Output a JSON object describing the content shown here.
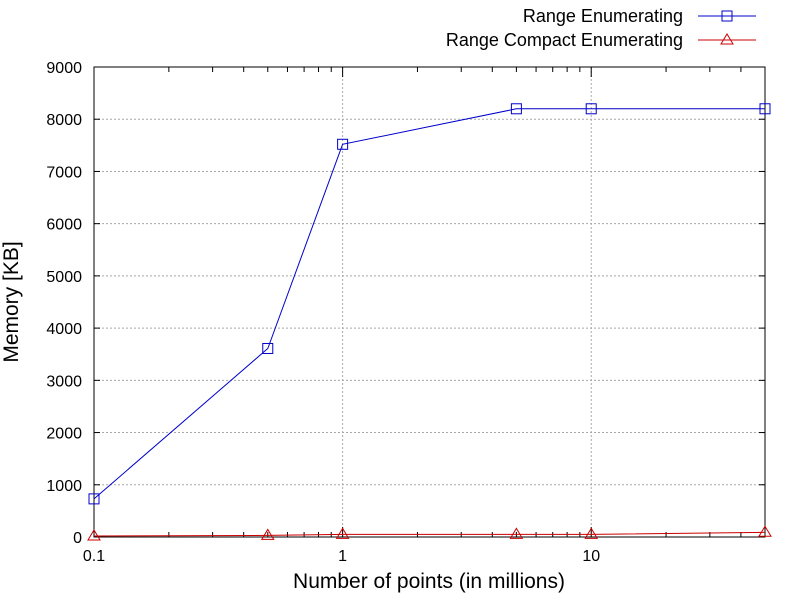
{
  "chart_data": {
    "type": "line",
    "xlabel": "Number of points (in millions)",
    "ylabel": "Memory [KB]",
    "x_scale": "log",
    "xlim": [
      0.1,
      50
    ],
    "ylim": [
      0,
      9000
    ],
    "x_ticks": [
      0.1,
      1,
      10
    ],
    "x_tick_labels": [
      "0.1",
      "1",
      "10"
    ],
    "y_ticks": [
      0,
      1000,
      2000,
      3000,
      4000,
      5000,
      6000,
      7000,
      8000,
      9000
    ],
    "y_tick_labels": [
      "0",
      "1000",
      "2000",
      "3000",
      "4000",
      "5000",
      "6000",
      "7000",
      "8000",
      "9000"
    ],
    "grid": true,
    "legend_position": "top-right",
    "series": [
      {
        "name": "Range Enumerating",
        "color": "#0000cc",
        "marker": "square",
        "x": [
          0.1,
          0.5,
          1,
          5,
          10,
          50
        ],
        "y": [
          730,
          3610,
          7520,
          8200,
          8200,
          8200
        ]
      },
      {
        "name": "Range Compact Enumerating",
        "color": "#cc0000",
        "marker": "triangle",
        "x": [
          0.1,
          0.5,
          1,
          5,
          10,
          50
        ],
        "y": [
          20,
          30,
          50,
          50,
          50,
          90
        ]
      }
    ]
  }
}
